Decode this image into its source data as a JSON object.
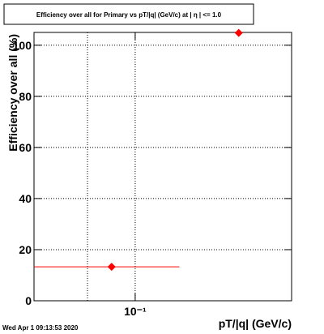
{
  "chart_data": {
    "type": "scatter",
    "title": "Efficiency over all for Primary vs pT/|q| (GeV/c) at | η | <= 1.0",
    "x_label": "pT/|q| (GeV/c)",
    "y_label": "Efficiency over all (%)",
    "timestamp": "Wed Apr  1 09:13:53 2020",
    "x_log": true,
    "xlim": [
      0.023,
      0.97
    ],
    "ylim": [
      0,
      105
    ],
    "xticks": [
      {
        "value": 0.1,
        "label": "10⁻¹"
      }
    ],
    "xgrid": [
      0.05,
      0.1
    ],
    "yticks": [
      0,
      20,
      40,
      60,
      80,
      100
    ],
    "grid": true,
    "series": [
      {
        "name": "Primary",
        "color": "#ff0000",
        "x": [
          0.071,
          0.45
        ],
        "values": [
          13.3,
          104.8
        ],
        "x_ranges": [
          [
            0.023,
            0.19
          ],
          null
        ]
      }
    ]
  }
}
